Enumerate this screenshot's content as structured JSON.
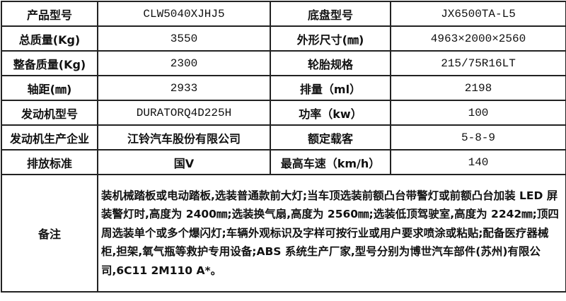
{
  "rows": [
    {
      "k1": "产品型号",
      "v1": "CLW5040XJHJ5",
      "k2": "底盘型号",
      "v2": "JX6500TA-L5"
    },
    {
      "k1": "总质量(Kg)",
      "v1": "3550",
      "k2": "外形尺寸(㎜)",
      "v2": "4963×2000×2560"
    },
    {
      "k1": "整备质量(Kg)",
      "v1": "2300",
      "k2": "轮胎规格",
      "v2": "215/75R16LT"
    },
    {
      "k1": "轴距(㎜)",
      "v1": "2933",
      "k2": "排量（ml）",
      "v2": "2198"
    },
    {
      "k1": "发动机型号",
      "v1": "DURATORQ4D225H",
      "k2": "功率（kw）",
      "v2": "100"
    },
    {
      "k1": "发动机生产企业",
      "v1": "江铃汽车股份有限公司",
      "k2": "额定载客",
      "v2": "5-8-9"
    },
    {
      "k1": "排放标准",
      "v1": "国Ⅴ",
      "k2": "最高车速（km/h）",
      "v2": "140"
    }
  ],
  "remarks": {
    "label": "备注",
    "text": "装机械踏板或电动踏板,选装普通款前大灯;当车顶选装前额凸台带警灯或前额凸台加装 LED 屏装警灯时,高度为 2400㎜;选装换气扇,高度为 2560㎜;选装低顶驾驶室,高度为 2242㎜;顶四周选装单个或多个爆闪灯;车辆外观标识及字样可按行业或用户要求喷涂或粘贴;配备医疗器械柜,担架,氧气瓶等救护专用设备;ABS 系统生产厂家,型号分别为博世汽车部件(苏州)有限公司,6C11 2M110 A*。"
  }
}
